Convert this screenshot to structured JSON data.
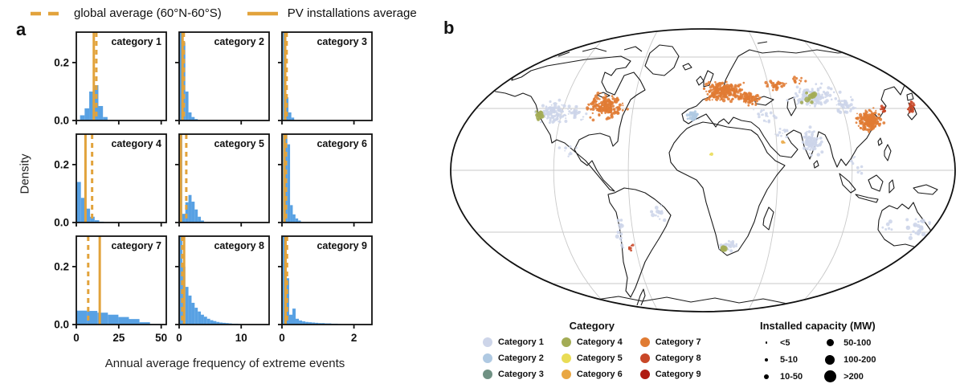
{
  "figure": {
    "panel_a_label": "a",
    "panel_b_label": "b"
  },
  "legend_top": {
    "color": "#E2A33C",
    "items": [
      {
        "style": "dashed",
        "label": "global average (60°N-60°S)"
      },
      {
        "style": "solid",
        "label": "PV installations average"
      }
    ]
  },
  "panel_a": {
    "ylabel": "Density",
    "xlabel": "Annual average frequency of extreme events"
  },
  "map_legend": {
    "category_title": "Category",
    "capacity_title": "Installed capacity (MW)",
    "categories": [
      {
        "label": "Category 1",
        "color": "#CDD5E9"
      },
      {
        "label": "Category 2",
        "color": "#AFC9E2"
      },
      {
        "label": "Category 3",
        "color": "#6F9183"
      },
      {
        "label": "Category 4",
        "color": "#A3AC55"
      },
      {
        "label": "Category 5",
        "color": "#E9DC55"
      },
      {
        "label": "Category 6",
        "color": "#E9A743"
      },
      {
        "label": "Category 7",
        "color": "#E07B33"
      },
      {
        "label": "Category 8",
        "color": "#C84727"
      },
      {
        "label": "Category 9",
        "color": "#B01B12"
      }
    ],
    "capacities": [
      {
        "label": "<5",
        "size": 2.5
      },
      {
        "label": "5-10",
        "size": 4
      },
      {
        "label": "10-50",
        "size": 6
      },
      {
        "label": "50-100",
        "size": 9
      },
      {
        "label": "100-200",
        "size": 12
      },
      {
        "label": ">200",
        "size": 15
      }
    ]
  },
  "chart_data": [
    {
      "type": "bar",
      "subtype": "histogram_grid",
      "title": "Density histograms of annual average frequency of extreme events, categories 1-9",
      "bar_color": "#58A1E3",
      "line_color": "#E2A33C",
      "ymax": 0.305,
      "yticks": [
        0.0,
        0.2
      ],
      "ytick_labels": [
        "0.0",
        "0.2"
      ],
      "columns": [
        {
          "xlim": [
            0,
            53
          ],
          "xticks": [
            0,
            25,
            50
          ]
        },
        {
          "xlim": [
            0,
            14.5
          ],
          "xticks": [
            0,
            10
          ]
        },
        {
          "xlim": [
            0,
            2.5
          ],
          "xticks": [
            0,
            2
          ]
        }
      ],
      "subplots": [
        {
          "title": "category 1",
          "bin_start": 2.2,
          "bin_width": 2.7,
          "heights": [
            0.018,
            0.042,
            0.1,
            0.122,
            0.05,
            0.012
          ],
          "vline_solid": 10.3,
          "vline_dashed": 11.8
        },
        {
          "title": "category 2",
          "bin_start": 0,
          "bin_width": 0.5,
          "heights": [
            0.34,
            0.27,
            0.1,
            0.028,
            0.012,
            0.005
          ],
          "vline_solid": 0.55,
          "vline_dashed": 0.75
        },
        {
          "title": "category 3",
          "bin_start": 0.02,
          "bin_width": 0.08,
          "heights": [
            0.34,
            0.08,
            0.028,
            0.01
          ],
          "vline_solid": 0.09,
          "vline_dashed": 0.13
        },
        {
          "title": "category 4",
          "bin_start": 0,
          "bin_width": 2.7,
          "heights": [
            0.14,
            0.085,
            0.048,
            0.02,
            0.008,
            0.003
          ],
          "vline_solid": 5.4,
          "vline_dashed": 9.3
        },
        {
          "title": "category 5",
          "bin_start": 0,
          "bin_width": 0.5,
          "heights": [
            0.34,
            0.03,
            0.07,
            0.095,
            0.072,
            0.045,
            0.02,
            0.007
          ],
          "vline_solid": 0.28,
          "vline_dashed": 1.15
        },
        {
          "title": "category 6",
          "bin_start": 0,
          "bin_width": 0.075,
          "heights": [
            0.34,
            0.34,
            0.27,
            0.06,
            0.028,
            0.014,
            0.007
          ],
          "vline_solid": 0.07,
          "vline_dashed": 0.11
        },
        {
          "title": "category 7",
          "bin_start": 0,
          "bin_width": 6.2,
          "heights": [
            0.048,
            0.047,
            0.041,
            0.034,
            0.026,
            0.019,
            0.008,
            0.002
          ],
          "vline_solid": 13.8,
          "vline_dashed": 7.0
        },
        {
          "title": "category 8",
          "bin_start": 0,
          "bin_width": 0.5,
          "heights": [
            0.34,
            0.2,
            0.13,
            0.1,
            0.075,
            0.058,
            0.045,
            0.034,
            0.027,
            0.02,
            0.015,
            0.012,
            0.009,
            0.007,
            0.006,
            0.005,
            0.004,
            0.003,
            0.003,
            0.002
          ],
          "vline_solid": 0.8,
          "vline_dashed": 0.5
        },
        {
          "title": "category 9",
          "bin_start": 0.02,
          "bin_width": 0.09,
          "heights": [
            0.34,
            0.16,
            0.034,
            0.055,
            0.02,
            0.014,
            0.011,
            0.009,
            0.008,
            0.007,
            0.006,
            0.005,
            0.005,
            0.004,
            0.004,
            0.003,
            0.003,
            0.002
          ],
          "vline_solid": 0.1,
          "vline_dashed": 0.14
        }
      ]
    },
    {
      "type": "scatter",
      "subtype": "world_map_pv_installations",
      "projection": "robinson-like",
      "category_colors": [
        "#CDD5E9",
        "#AFC9E2",
        "#6F9183",
        "#A3AC55",
        "#E9DC55",
        "#E9A743",
        "#E07B33",
        "#C84727",
        "#B01B12"
      ],
      "clusters": [
        {
          "region": "western-us",
          "cat": 1,
          "x": 143,
          "y": 112,
          "sx": 16,
          "sy": 12,
          "n": 110,
          "r": 1.5
        },
        {
          "region": "us-plains",
          "cat": 1,
          "x": 172,
          "y": 115,
          "sx": 10,
          "sy": 9,
          "n": 30,
          "r": 1.4
        },
        {
          "region": "california",
          "cat": 4,
          "x": 127,
          "y": 115,
          "sx": 4,
          "sy": 8,
          "n": 11,
          "r": 2.3
        },
        {
          "region": "mexico",
          "cat": 1,
          "x": 163,
          "y": 160,
          "sx": 9,
          "sy": 8,
          "n": 9,
          "r": 1.3
        },
        {
          "region": "eastern-us",
          "cat": 7,
          "x": 208,
          "y": 104,
          "sx": 20,
          "sy": 12,
          "n": 175,
          "r": 1.5
        },
        {
          "region": "chile-coast",
          "cat": 1,
          "x": 227,
          "y": 262,
          "sx": 3,
          "sy": 18,
          "n": 16,
          "r": 1.8
        },
        {
          "region": "central-chile",
          "cat": 8,
          "x": 240,
          "y": 281,
          "sx": 2,
          "sy": 6,
          "n": 7,
          "r": 1.5
        },
        {
          "region": "brazil",
          "cat": 1,
          "x": 272,
          "y": 240,
          "sx": 9,
          "sy": 13,
          "n": 13,
          "r": 1.8
        },
        {
          "region": "south-africa",
          "cat": 1,
          "x": 361,
          "y": 278,
          "sx": 8,
          "sy": 6,
          "n": 22,
          "r": 1.7
        },
        {
          "region": "south-africa-g",
          "cat": 4,
          "x": 356,
          "y": 281,
          "sx": 3,
          "sy": 2,
          "n": 4,
          "r": 2.8
        },
        {
          "region": "spain",
          "cat": 2,
          "x": 317,
          "y": 116,
          "sx": 7,
          "sy": 5,
          "n": 40,
          "r": 1.5
        },
        {
          "region": "western-europe",
          "cat": 7,
          "x": 356,
          "y": 86,
          "sx": 20,
          "sy": 10,
          "n": 240,
          "r": 1.5
        },
        {
          "region": "eastern-europe",
          "cat": 7,
          "x": 386,
          "y": 94,
          "sx": 11,
          "sy": 7,
          "n": 70,
          "r": 1.4
        },
        {
          "region": "ukraine",
          "cat": 7,
          "x": 420,
          "y": 78,
          "sx": 12,
          "sy": 6,
          "n": 40,
          "r": 1.4
        },
        {
          "region": "south-russia",
          "cat": 7,
          "x": 448,
          "y": 72,
          "sx": 7,
          "sy": 4,
          "n": 14,
          "r": 1.3
        },
        {
          "region": "turkey",
          "cat": 1,
          "x": 408,
          "y": 116,
          "sx": 13,
          "sy": 8,
          "n": 22,
          "r": 1.3
        },
        {
          "region": "middle-east",
          "cat": 1,
          "x": 428,
          "y": 138,
          "sx": 10,
          "sy": 8,
          "n": 14,
          "r": 1.3
        },
        {
          "region": "central-asia",
          "cat": 1,
          "x": 468,
          "y": 92,
          "sx": 24,
          "sy": 11,
          "n": 120,
          "r": 1.6
        },
        {
          "region": "central-asia-g",
          "cat": 4,
          "x": 466,
          "y": 92,
          "sx": 15,
          "sy": 6,
          "n": 13,
          "r": 2.6
        },
        {
          "region": "india",
          "cat": 1,
          "x": 465,
          "y": 148,
          "sx": 11,
          "sy": 13,
          "n": 80,
          "r": 1.6
        },
        {
          "region": "western-china",
          "cat": 1,
          "x": 507,
          "y": 104,
          "sx": 11,
          "sy": 8,
          "n": 45,
          "r": 1.5
        },
        {
          "region": "eastern-china",
          "cat": 7,
          "x": 537,
          "y": 122,
          "sx": 13,
          "sy": 11,
          "n": 190,
          "r": 1.5
        },
        {
          "region": "korea",
          "cat": 8,
          "x": 554,
          "y": 109,
          "sx": 3,
          "sy": 4,
          "n": 14,
          "r": 1.5
        },
        {
          "region": "japan",
          "cat": 8,
          "x": 589,
          "y": 106,
          "sx": 4,
          "sy": 8,
          "n": 22,
          "r": 1.5
        },
        {
          "region": "southeast-asia",
          "cat": 1,
          "x": 520,
          "y": 178,
          "sx": 13,
          "sy": 11,
          "n": 10,
          "r": 1.3
        },
        {
          "region": "australia-east",
          "cat": 1,
          "x": 598,
          "y": 257,
          "sx": 13,
          "sy": 13,
          "n": 26,
          "r": 2.0
        },
        {
          "region": "australia-west",
          "cat": 1,
          "x": 562,
          "y": 255,
          "sx": 8,
          "sy": 6,
          "n": 6,
          "r": 1.7
        },
        {
          "region": "new-zealand",
          "cat": 1,
          "x": 636,
          "y": 293,
          "sx": 3,
          "sy": 5,
          "n": 3,
          "r": 1.6
        },
        {
          "region": "sahel",
          "cat": 5,
          "x": 339,
          "y": 163,
          "sx": 3,
          "sy": 2,
          "n": 2,
          "r": 1.6
        },
        {
          "region": "arabia",
          "cat": 6,
          "x": 431,
          "y": 149,
          "sx": 3,
          "sy": 2,
          "n": 3,
          "r": 1.5
        }
      ]
    }
  ]
}
